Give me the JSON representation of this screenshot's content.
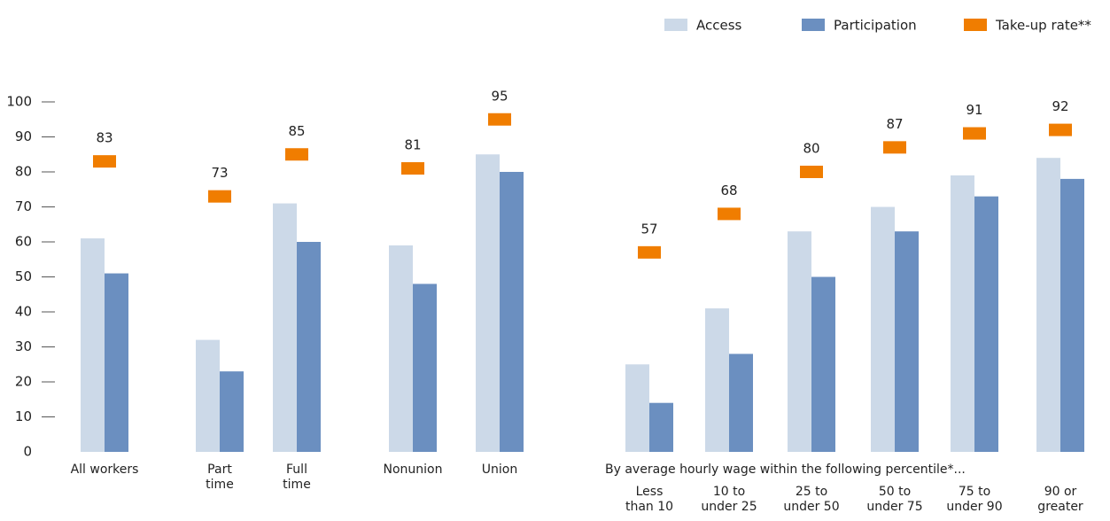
{
  "chart_data": {
    "type": "bar",
    "categories": [
      "All workers",
      "Part\ntime",
      "Full\ntime",
      "Nonunion",
      "Union",
      "Less\nthan 10",
      "10 to\nunder 25",
      "25 to\nunder 50",
      "50 to\nunder 75",
      "75 to\nunder 90",
      "90 or\ngreater"
    ],
    "group_label": "By average hourly wage within the following percentile*...",
    "series": [
      {
        "name": "Access",
        "color": "#ccd9e8",
        "values": [
          61,
          32,
          71,
          59,
          85,
          25,
          41,
          63,
          70,
          79,
          84
        ]
      },
      {
        "name": "Participation",
        "color": "#6b8fc0",
        "values": [
          51,
          23,
          60,
          48,
          80,
          14,
          28,
          50,
          63,
          73,
          78
        ]
      },
      {
        "name": "Take-up rate**",
        "color": "#f07d00",
        "values": [
          83,
          73,
          85,
          81,
          95,
          57,
          68,
          80,
          87,
          91,
          92
        ]
      }
    ],
    "ylim": [
      0,
      100
    ],
    "yticks": [
      0,
      10,
      20,
      30,
      40,
      50,
      60,
      70,
      80,
      90,
      100
    ]
  }
}
